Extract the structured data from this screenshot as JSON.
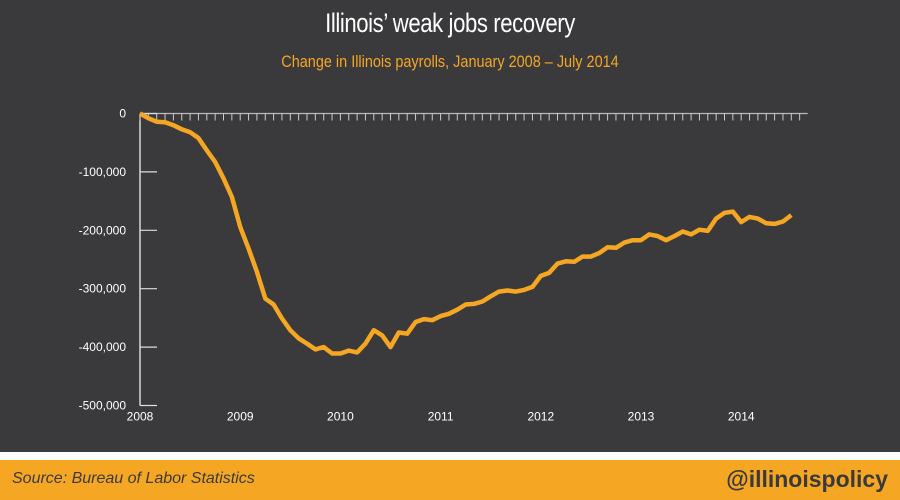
{
  "header": {
    "title": "Illinois’ weak jobs recovery",
    "subtitle": "Change in Illinois payrolls, January 2008 – July 2014"
  },
  "footer": {
    "source": "Source: Bureau of Labor Statistics",
    "handle": "@illinoispolicy"
  },
  "colors": {
    "background": "#3a3a3c",
    "line": "#f5a623",
    "footer": "#f5a623"
  },
  "chart_data": {
    "type": "line",
    "title": "Illinois’ weak jobs recovery",
    "subtitle": "Change in Illinois payrolls, January 2008 – July 2014",
    "xlabel": "",
    "ylabel": "",
    "x_start": "2008-01",
    "x_frequency": "monthly",
    "xlim": [
      2008,
      2014.6
    ],
    "ylim": [
      -500000,
      0
    ],
    "grid": false,
    "x_ticks": [
      "2008",
      "2009",
      "2010",
      "2011",
      "2012",
      "2013",
      "2014"
    ],
    "y_ticks": [
      "0",
      "-100,000",
      "-200,000",
      "-300,000",
      "-400,000",
      "-500,000"
    ],
    "y_tick_values": [
      0,
      -100000,
      -200000,
      -300000,
      -400000,
      -500000
    ],
    "series": [
      {
        "values": [
          0,
          -8000,
          -14000,
          -15000,
          -20000,
          -27000,
          -32000,
          -42000,
          -63000,
          -83000,
          -111000,
          -143000,
          -194000,
          -231000,
          -271000,
          -317000,
          -327000,
          -351000,
          -371000,
          -385000,
          -394000,
          -404000,
          -400000,
          -411000,
          -411000,
          -406000,
          -409000,
          -394000,
          -371000,
          -380000,
          -400000,
          -375000,
          -377000,
          -357000,
          -352000,
          -354000,
          -347000,
          -343000,
          -336000,
          -327000,
          -326000,
          -322000,
          -313000,
          -305000,
          -303000,
          -305000,
          -302000,
          -297000,
          -278000,
          -273000,
          -257000,
          -253000,
          -254000,
          -245000,
          -245000,
          -239000,
          -229000,
          -230000,
          -221000,
          -217000,
          -217000,
          -207000,
          -210000,
          -217000,
          -210000,
          -202000,
          -207000,
          -199000,
          -201000,
          -180000,
          -170000,
          -168000,
          -186000,
          -177000,
          -180000,
          -188000,
          -189000,
          -185000,
          -174000
        ]
      }
    ]
  }
}
